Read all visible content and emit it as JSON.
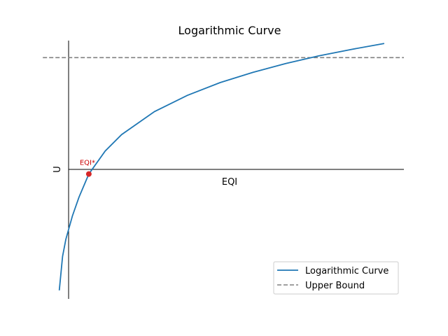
{
  "chart_data": {
    "type": "line",
    "title": "Logarithmic Curve",
    "xlabel": "EQI",
    "ylabel": "U",
    "xlim": [
      0,
      1.06
    ],
    "ylim": [
      -4.4,
      4.7
    ],
    "grid": false,
    "legend_position": "lower-right",
    "series": [
      {
        "name": "Logarithmic Curve",
        "color": "#1f77b4",
        "style": "solid",
        "x": [
          0.01,
          0.02,
          0.03,
          0.05,
          0.07,
          0.1,
          0.15,
          0.2,
          0.3,
          0.4,
          0.5,
          0.6,
          0.7,
          0.8,
          0.9,
          1.0
        ],
        "y": [
          -4.1,
          -2.9,
          -2.3,
          -1.48,
          -0.82,
          0.0,
          0.81,
          1.39,
          2.2,
          2.77,
          3.22,
          3.58,
          3.89,
          4.16,
          4.39,
          4.6
        ]
      },
      {
        "name": "Upper Bound",
        "color": "#808080",
        "style": "dashed",
        "x": [
          -0.04,
          1.06
        ],
        "y": [
          4.1,
          4.1
        ]
      }
    ],
    "annotations": [
      {
        "text": "EQI*",
        "x": 0.1,
        "y": 0.0,
        "color": "#cc0000"
      }
    ]
  }
}
